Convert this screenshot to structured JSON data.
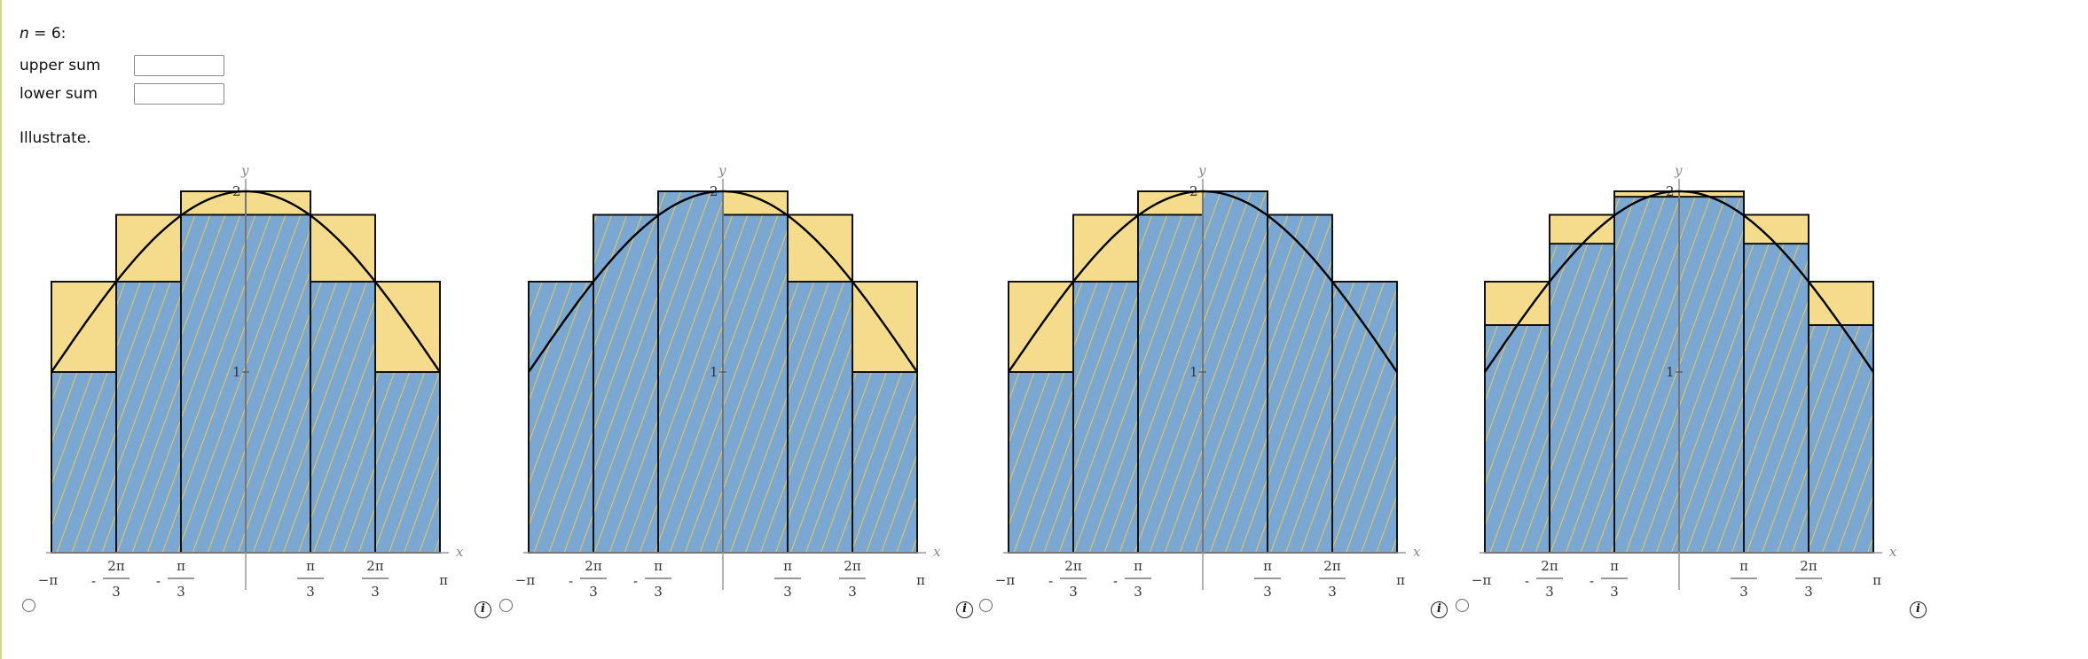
{
  "header": {
    "n_var": "n",
    "n_rest": " = 6:"
  },
  "form": {
    "upper_sum_label": "upper sum",
    "lower_sum_label": "lower sum",
    "upper_sum_value": "",
    "lower_sum_value": ""
  },
  "illustrate_label": "Illustrate.",
  "colors": {
    "upper_fill": "#f4dc8c",
    "lower_fill": "#7aa8d2",
    "hatch": "#f2c84a",
    "curve": "#000000",
    "axis": "#999999"
  },
  "graph_common": {
    "x_axis_label": "x",
    "y_axis_label": "y",
    "y_ticks": [
      "1",
      "2"
    ],
    "x_tick_labels": [
      {
        "num": "−π",
        "den": "",
        "neg": false
      },
      {
        "num": "2π",
        "den": "3",
        "neg": true
      },
      {
        "num": "π",
        "den": "3",
        "neg": true
      },
      {
        "num": "π",
        "den": "3",
        "neg": false
      },
      {
        "num": "2π",
        "den": "3",
        "neg": false
      },
      {
        "num": "π",
        "den": "",
        "neg": false
      }
    ]
  },
  "options": [
    {
      "selected": false,
      "chart_data": {
        "type": "area",
        "function_values": "1 + cos(x/2)-like curve from (−π,1) through (0,2) to (π,1)",
        "x_range": [
          "−π",
          "π"
        ],
        "ylim": [
          0,
          2
        ],
        "rect_heights": [
          1.5,
          1.87,
          2.0,
          2.0,
          1.87,
          1.5
        ],
        "blue_heights": [
          1.0,
          1.5,
          1.87,
          1.87,
          1.5,
          1.0
        ]
      }
    },
    {
      "selected": false,
      "chart_data": {
        "type": "area",
        "x_range": [
          "−π",
          "π"
        ],
        "ylim": [
          0,
          2
        ],
        "rect_heights": [
          1.5,
          1.87,
          2.0,
          2.0,
          1.87,
          1.5
        ],
        "blue_heights": [
          1.5,
          1.87,
          2.0,
          1.87,
          1.5,
          1.0
        ]
      }
    },
    {
      "selected": false,
      "chart_data": {
        "type": "area",
        "x_range": [
          "−π",
          "π"
        ],
        "ylim": [
          0,
          2
        ],
        "rect_heights": [
          1.5,
          1.87,
          2.0,
          2.0,
          1.87,
          1.5
        ],
        "blue_heights": [
          1.0,
          1.5,
          1.87,
          2.0,
          1.87,
          1.5
        ]
      }
    },
    {
      "selected": false,
      "chart_data": {
        "type": "area",
        "x_range": [
          "−π",
          "π"
        ],
        "ylim": [
          0,
          2
        ],
        "rect_heights": [
          1.5,
          1.87,
          2.0,
          2.0,
          1.87,
          1.5
        ],
        "blue_heights": [
          1.26,
          1.71,
          1.97,
          1.97,
          1.71,
          1.26
        ]
      }
    }
  ]
}
